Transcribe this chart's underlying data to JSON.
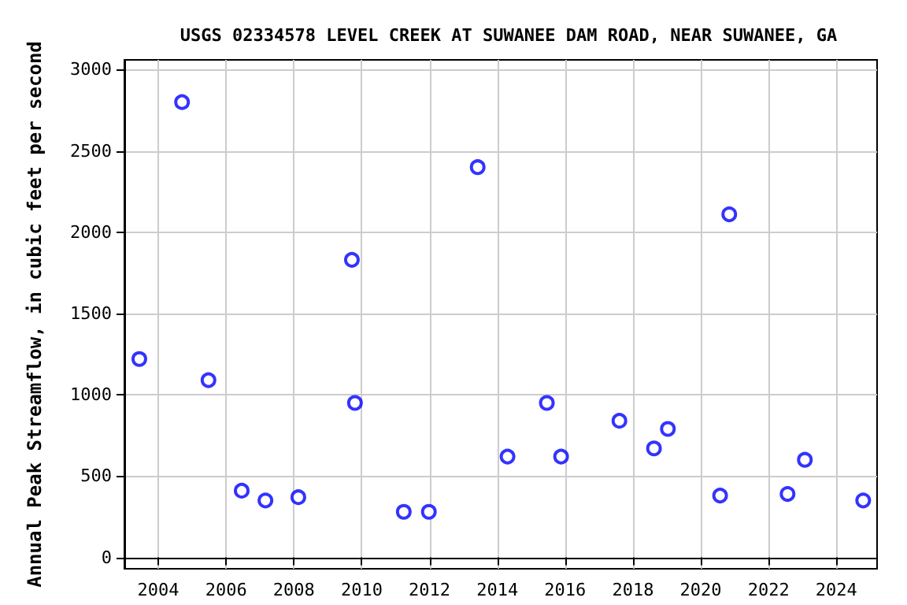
{
  "chart_data": {
    "type": "scatter",
    "title": "USGS 02334578 LEVEL CREEK AT SUWANEE DAM ROAD, NEAR SUWANEE, GA",
    "ylabel": "Annual Peak Streamflow, in cubic feet per second",
    "x": [
      2003.44,
      2004.7,
      2005.48,
      2006.46,
      2007.16,
      2008.13,
      2009.71,
      2009.8,
      2011.24,
      2011.98,
      2013.42,
      2014.3,
      2015.46,
      2015.88,
      2017.6,
      2018.62,
      2019.03,
      2020.57,
      2020.84,
      2022.56,
      2023.07,
      2024.79
    ],
    "series": [
      {
        "color": "#0000ff",
        "values": [
          1220,
          2800,
          1090,
          410,
          350,
          370,
          1830,
          950,
          280,
          280,
          2400,
          620,
          950,
          620,
          840,
          670,
          790,
          380,
          2110,
          390,
          600,
          350
        ]
      }
    ],
    "xlim": [
      2003,
      2025.2
    ],
    "xticks": [
      2004,
      2006,
      2008,
      2010,
      2012,
      2014,
      2016,
      2018,
      2020,
      2022,
      2024
    ],
    "ylim": [
      -70,
      3060
    ],
    "yticks": [
      0,
      500,
      1000,
      1500,
      2000,
      2500,
      3000
    ],
    "grid": true,
    "marker": "circle"
  }
}
